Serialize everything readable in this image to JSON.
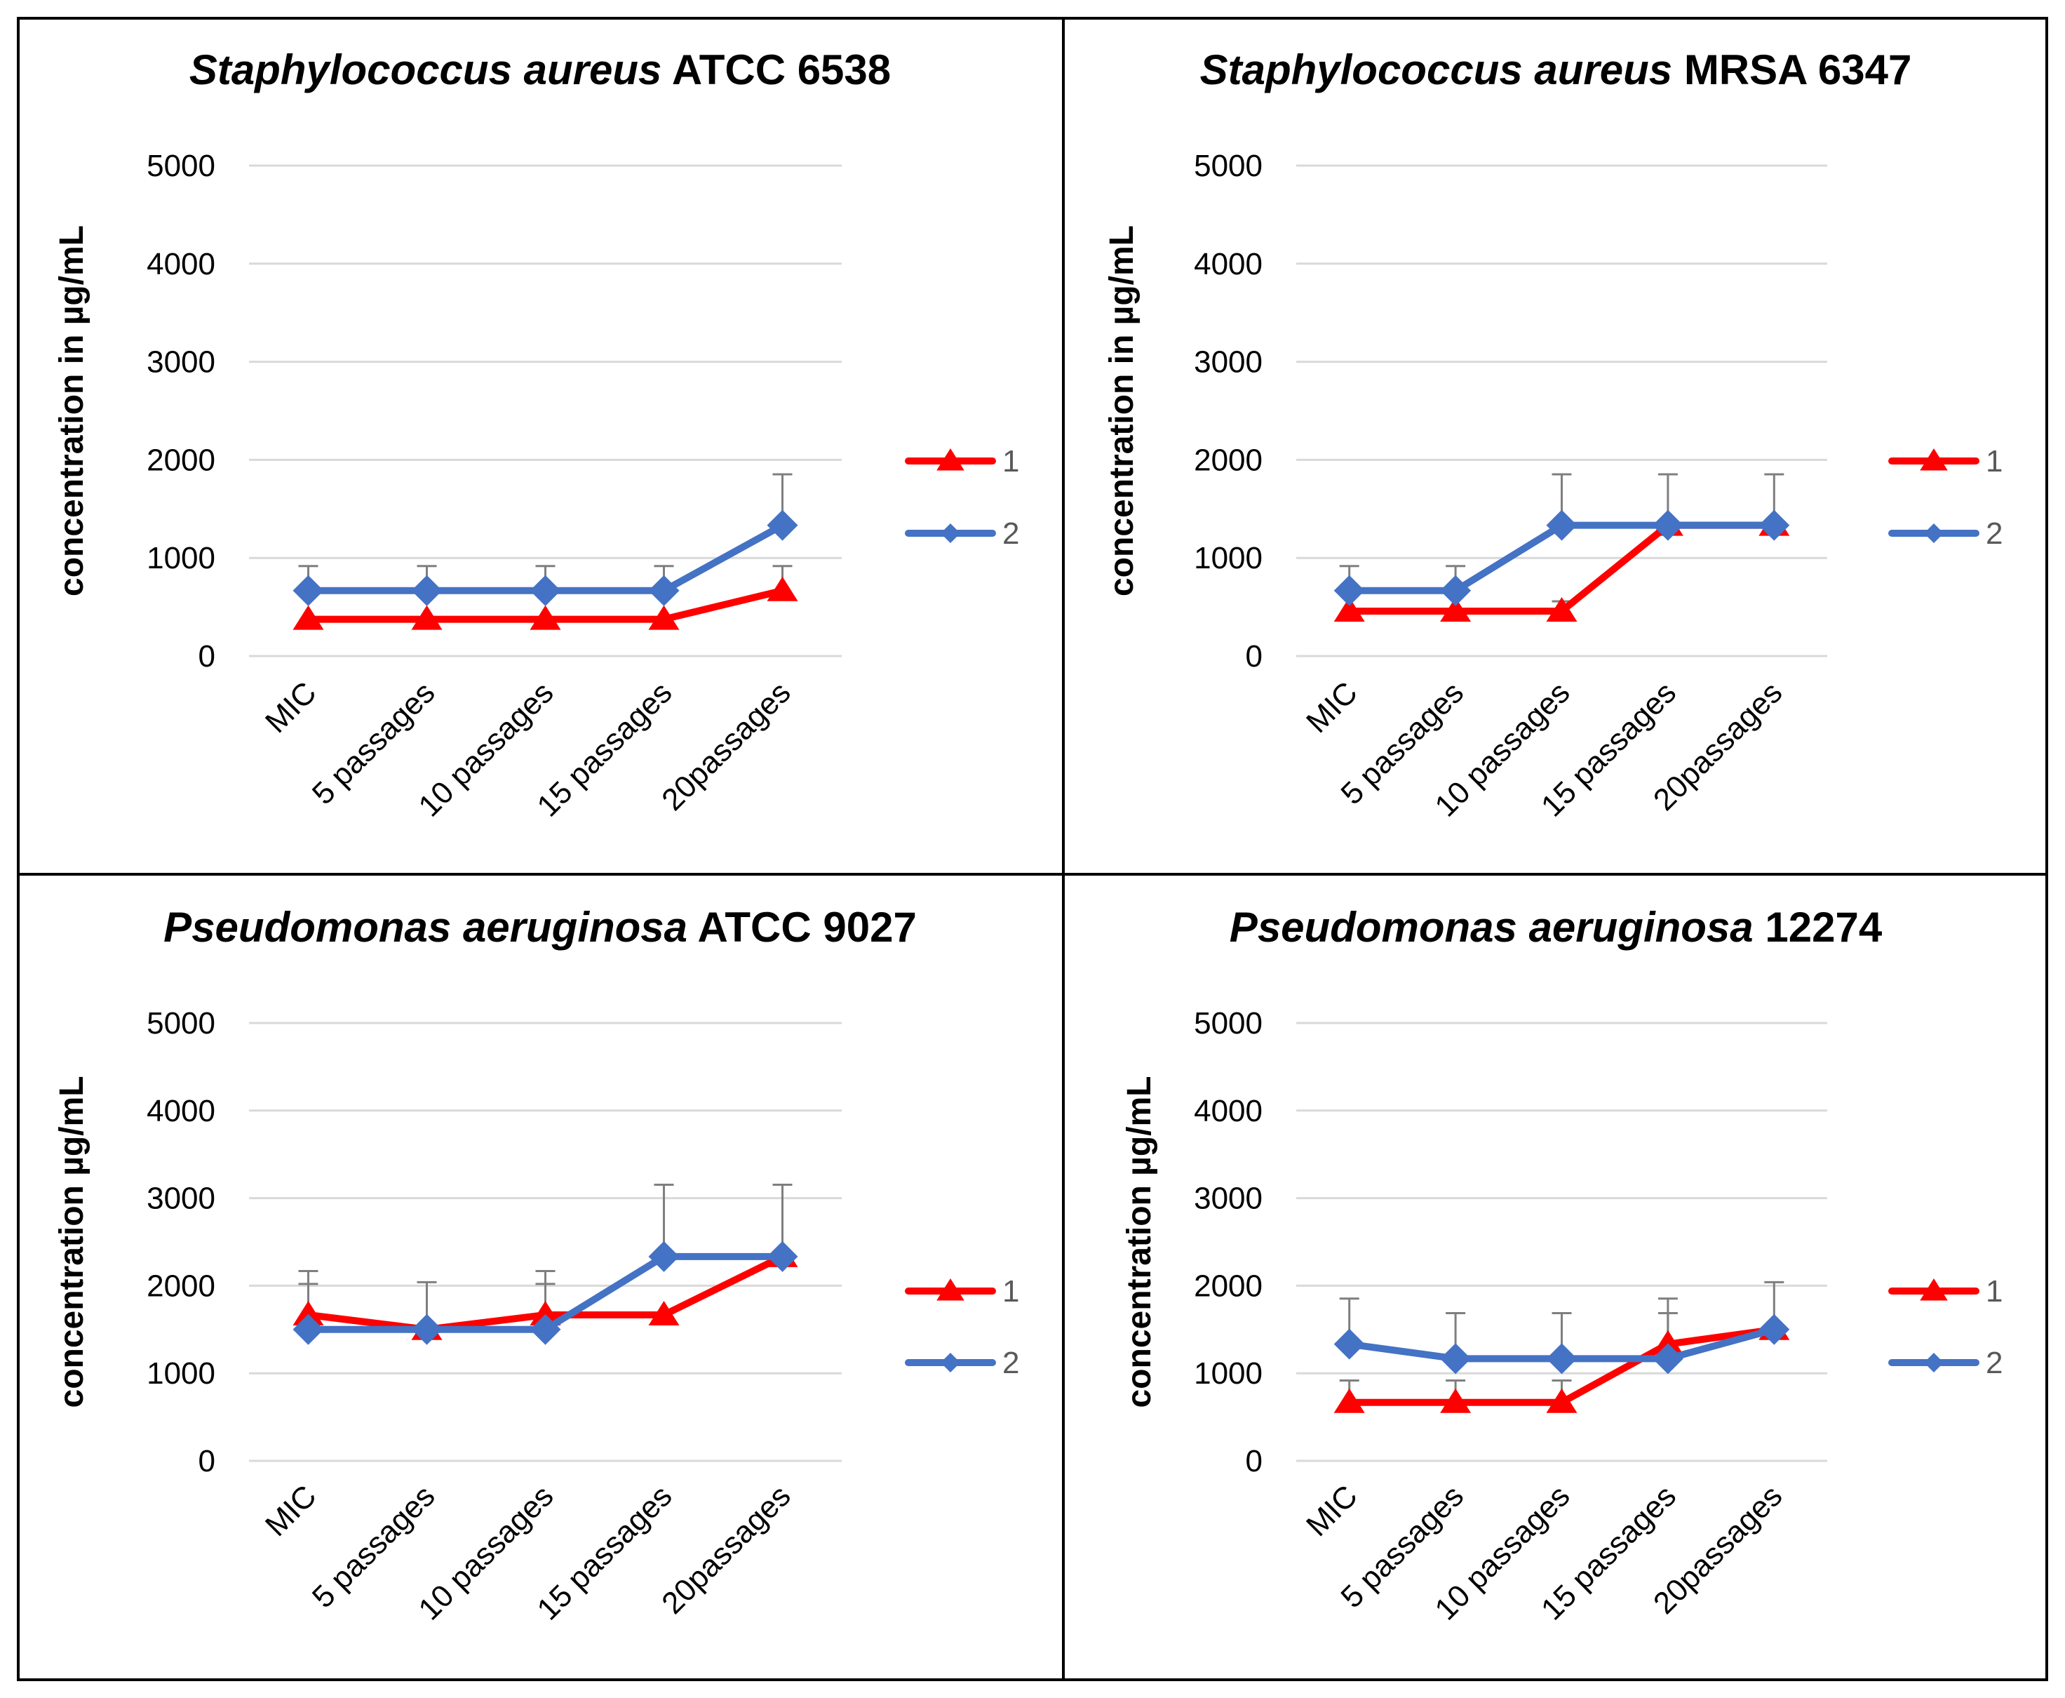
{
  "chart_data": [
    {
      "type": "line",
      "title_italic": "Staphylococcus aureus",
      "title_rest": " ATCC 6538",
      "ylabel": "concentration in µg/mL",
      "ylim": [
        0,
        5000
      ],
      "yticks": [
        "0",
        "1000",
        "2000",
        "3000",
        "4000",
        "5000"
      ],
      "categories": [
        "MIC",
        "5 passages",
        "10 passages",
        "15 passages",
        "20passages"
      ],
      "grid": true,
      "legend": "right",
      "series": [
        {
          "name": "1",
          "color": "#ff0000",
          "marker": "triangle",
          "values": [
            375,
            375,
            375,
            375,
            667
          ],
          "err_up": [
            0,
            0,
            0,
            0,
            250
          ]
        },
        {
          "name": "2",
          "color": "#4472c4",
          "marker": "diamond",
          "values": [
            667,
            667,
            667,
            667,
            1333
          ],
          "err_up": [
            250,
            250,
            250,
            250,
            520
          ]
        }
      ]
    },
    {
      "type": "line",
      "title_italic": "Staphylococcus aureus",
      "title_rest": " MRSA 6347",
      "ylabel": "concentration in µg/mL",
      "ylim": [
        0,
        5000
      ],
      "yticks": [
        "0",
        "1000",
        "2000",
        "3000",
        "4000",
        "5000"
      ],
      "categories": [
        "MIC",
        "5 passages",
        "10 passages",
        "15 passages",
        "20passages"
      ],
      "grid": true,
      "legend": "right",
      "series": [
        {
          "name": "1",
          "color": "#ff0000",
          "marker": "triangle",
          "values": [
            458,
            458,
            458,
            1333,
            1333
          ],
          "err_up": [
            0,
            0,
            100,
            0,
            0
          ]
        },
        {
          "name": "2",
          "color": "#4472c4",
          "marker": "diamond",
          "values": [
            667,
            667,
            1333,
            1333,
            1333
          ],
          "err_up": [
            250,
            250,
            520,
            520,
            520
          ]
        }
      ]
    },
    {
      "type": "line",
      "title_italic": "Pseudomonas aeruginosa",
      "title_rest": " ATCC 9027",
      "ylabel": "concentration µg/mL",
      "ylim": [
        0,
        5000
      ],
      "yticks": [
        "0",
        "1000",
        "2000",
        "3000",
        "4000",
        "5000"
      ],
      "categories": [
        "MIC",
        "5 passages",
        "10 passages",
        "15 passages",
        "20passages"
      ],
      "grid": true,
      "legend": "right",
      "series": [
        {
          "name": "1",
          "color": "#ff0000",
          "marker": "triangle",
          "values": [
            1667,
            1500,
            1667,
            1667,
            2333
          ],
          "err_up": [
            500,
            0,
            500,
            0,
            0
          ]
        },
        {
          "name": "2",
          "color": "#4472c4",
          "marker": "diamond",
          "values": [
            1500,
            1500,
            1500,
            2333,
            2333
          ],
          "err_up": [
            520,
            540,
            520,
            820,
            820
          ]
        }
      ]
    },
    {
      "type": "line",
      "title_italic": "Pseudomonas aeruginosa",
      "title_rest": " 12274",
      "ylabel": "concentration µg/mL",
      "ylim": [
        0,
        5000
      ],
      "yticks": [
        "0",
        "1000",
        "2000",
        "3000",
        "4000",
        "5000"
      ],
      "categories": [
        "MIC",
        "5 passages",
        "10 passages",
        "15 passages",
        "20passages"
      ],
      "grid": true,
      "legend": "right",
      "series": [
        {
          "name": "1",
          "color": "#ff0000",
          "marker": "triangle",
          "values": [
            667,
            667,
            667,
            1333,
            1500
          ],
          "err_up": [
            250,
            250,
            250,
            520,
            0
          ]
        },
        {
          "name": "2",
          "color": "#4472c4",
          "marker": "diamond",
          "values": [
            1333,
            1167,
            1167,
            1167,
            1500
          ],
          "err_up": [
            520,
            520,
            520,
            520,
            540
          ]
        }
      ]
    }
  ]
}
